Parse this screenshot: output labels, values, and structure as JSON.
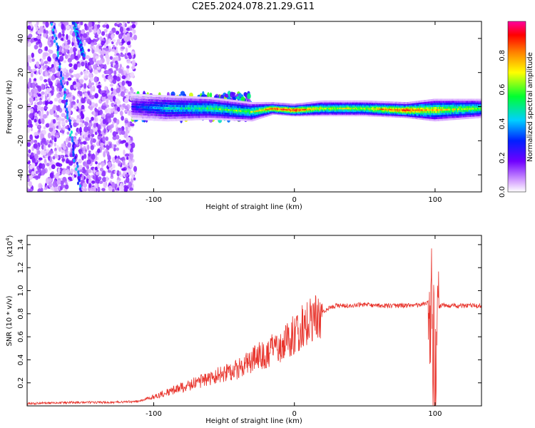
{
  "title": "C2E5.2024.078.21.29.G11",
  "chart_data": [
    {
      "type": "heatmap",
      "xlabel": "Height of straight line (km)",
      "ylabel": "Frequency (Hz)",
      "xlim": [
        -190,
        133
      ],
      "ylim": [
        -50,
        50
      ],
      "x_ticks": [
        -100,
        0,
        100
      ],
      "y_ticks": [
        -40,
        -20,
        0,
        20,
        40
      ],
      "colorbar": {
        "label": "Normalized spectral amplitude",
        "range": [
          0,
          1
        ],
        "ticks": [
          0.0,
          0.2,
          0.4,
          0.6,
          0.8
        ],
        "colormap": [
          "#ffffff",
          "#d8a8ff",
          "#7000ff",
          "#0020ff",
          "#00d0ff",
          "#00ff30",
          "#ffff00",
          "#ff8000",
          "#ff0000",
          "#ff00a0"
        ]
      },
      "scatter_regions": [
        {
          "x_range": [
            -190,
            -113
          ],
          "frequency_range": [
            -50,
            50
          ],
          "typical_amplitude": 0.15
        },
        {
          "x_range": [
            -115,
            -30
          ],
          "frequency_range": [
            -8,
            8
          ],
          "typical_amplitude": 0.45
        }
      ],
      "streaks": [
        {
          "x_start": -172,
          "x_end": -152,
          "frequency_start": 50,
          "frequency_end": -50,
          "amplitude": 0.3
        },
        {
          "x_start": -157,
          "x_end": -150,
          "frequency_start": 50,
          "frequency_end": 30,
          "amplitude": 0.3
        }
      ],
      "series": [
        {
          "x": -115,
          "frequency": 0,
          "amplitude": 0.3,
          "band_halfwidth": 7
        },
        {
          "x": -90,
          "frequency": -1,
          "amplitude": 0.45,
          "band_halfwidth": 7
        },
        {
          "x": -60,
          "frequency": -1,
          "amplitude": 0.55,
          "band_halfwidth": 6
        },
        {
          "x": -30,
          "frequency": -3,
          "amplitude": 0.6,
          "band_halfwidth": 5
        },
        {
          "x": -15,
          "frequency": -1,
          "amplitude": 0.8,
          "band_halfwidth": 3
        },
        {
          "x": 0,
          "frequency": -2,
          "amplitude": 0.9,
          "band_halfwidth": 3
        },
        {
          "x": 20,
          "frequency": -1,
          "amplitude": 0.65,
          "band_halfwidth": 4
        },
        {
          "x": 50,
          "frequency": -1,
          "amplitude": 0.65,
          "band_halfwidth": 4
        },
        {
          "x": 80,
          "frequency": -2,
          "amplitude": 0.85,
          "band_halfwidth": 4
        },
        {
          "x": 100,
          "frequency": -2,
          "amplitude": 0.7,
          "band_halfwidth": 6
        },
        {
          "x": 133,
          "frequency": -1,
          "amplitude": 0.6,
          "band_halfwidth": 5
        }
      ]
    },
    {
      "type": "line",
      "xlabel": "Height of straight line (km)",
      "ylabel": "SNR (10 * v/v)",
      "y_multiplier": "(x10^4)",
      "xlim": [
        -190,
        133
      ],
      "ylim": [
        0,
        1.48
      ],
      "x_ticks": [
        -100,
        0,
        100
      ],
      "y_ticks": [
        0.2,
        0.4,
        0.6,
        0.8,
        1.0,
        1.2,
        1.4
      ],
      "color": "#e8332b",
      "series": [
        {
          "x": [
            -190,
            -160,
            -130,
            -110,
            -100,
            -90,
            -80,
            -70,
            -60,
            -50,
            -40,
            -35,
            -30,
            -25,
            -20,
            -15,
            -10,
            -5,
            0,
            5,
            10,
            15,
            20,
            25,
            30,
            40,
            50,
            60,
            70,
            80,
            90,
            95,
            98,
            100,
            102,
            105,
            110,
            120,
            133
          ],
          "y": [
            0.02,
            0.03,
            0.03,
            0.04,
            0.08,
            0.12,
            0.16,
            0.2,
            0.24,
            0.28,
            0.32,
            0.36,
            0.4,
            0.44,
            0.44,
            0.5,
            0.52,
            0.58,
            0.62,
            0.68,
            0.74,
            0.78,
            0.82,
            0.85,
            0.87,
            0.87,
            0.88,
            0.87,
            0.87,
            0.87,
            0.88,
            0.9,
            0.8,
            0.2,
            0.85,
            0.88,
            0.87,
            0.87,
            0.87
          ]
        }
      ]
    }
  ]
}
